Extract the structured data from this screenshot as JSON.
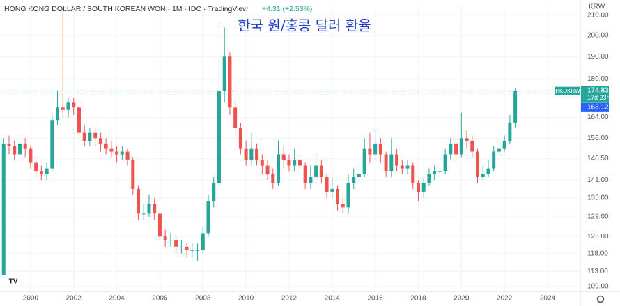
{
  "chart_data": {
    "type": "candlestick",
    "title": "HONG KONG DOLLAR / SOUTH KOREAN WON · 1M · IDC · TradingView",
    "change": "+4.31 (+2.53%)",
    "annotation": "한국 원/홍콩 달러 환율",
    "y_unit": "KRW",
    "symbol": "HKDKRW",
    "last_price": 174.83,
    "countdown": "17d 23h",
    "prev_price": 168.12,
    "up_color": "#26a69a",
    "down_color": "#ef5350",
    "prev_color": "#2962ff",
    "log_scale": true,
    "xlim": [
      1998.58,
      2025.52
    ],
    "xticks": [
      2000,
      2002,
      2004,
      2006,
      2008,
      2010,
      2012,
      2014,
      2016,
      2018,
      2020,
      2022,
      2024
    ],
    "ylim": [
      107.7,
      215
    ],
    "yticks": [
      {
        "value": 109,
        "label": "109.00"
      },
      {
        "value": 113,
        "label": "113.00"
      },
      {
        "value": 118,
        "label": "118.00"
      },
      {
        "value": 123,
        "label": "123.00"
      },
      {
        "value": 129,
        "label": "129.00"
      },
      {
        "value": 135,
        "label": "135.00"
      },
      {
        "value": 141,
        "label": "141.00"
      },
      {
        "value": 148.5,
        "label": "148.50"
      },
      {
        "value": 156,
        "label": "156.00"
      },
      {
        "value": 164,
        "label": "164.00"
      },
      {
        "value": 180,
        "label": "180.00"
      },
      {
        "value": 190,
        "label": "190.00"
      },
      {
        "value": 200,
        "label": "200.00"
      },
      {
        "value": 210,
        "label": "210.00"
      }
    ],
    "x": [
      1998.75,
      1999.0,
      1999.25,
      1999.5,
      1999.75,
      2000.0,
      2000.25,
      2000.5,
      2000.75,
      2001.0,
      2001.25,
      2001.5,
      2001.75,
      2002.0,
      2002.25,
      2002.5,
      2002.75,
      2003.0,
      2003.25,
      2003.5,
      2003.75,
      2004.0,
      2004.25,
      2004.5,
      2004.75,
      2005.0,
      2005.25,
      2005.5,
      2005.75,
      2006.0,
      2006.25,
      2006.5,
      2006.75,
      2007.0,
      2007.25,
      2007.5,
      2007.75,
      2008.0,
      2008.25,
      2008.5,
      2008.75,
      2009.0,
      2009.25,
      2009.5,
      2009.75,
      2010.0,
      2010.25,
      2010.5,
      2010.75,
      2011.0,
      2011.25,
      2011.5,
      2011.75,
      2012.0,
      2012.25,
      2012.5,
      2012.75,
      2013.0,
      2013.25,
      2013.5,
      2013.75,
      2014.0,
      2014.25,
      2014.5,
      2014.75,
      2015.0,
      2015.25,
      2015.5,
      2015.75,
      2016.0,
      2016.25,
      2016.5,
      2016.75,
      2017.0,
      2017.25,
      2017.5,
      2017.75,
      2018.0,
      2018.25,
      2018.5,
      2018.75,
      2019.0,
      2019.25,
      2019.5,
      2019.75,
      2020.0,
      2020.25,
      2020.5,
      2020.75,
      2021.0,
      2021.25,
      2021.5,
      2021.75,
      2022.0,
      2022.25,
      2022.5
    ],
    "open": [
      112,
      154,
      153,
      150,
      154,
      152,
      147,
      144,
      143,
      145,
      163,
      168,
      167,
      170,
      168,
      158,
      155,
      158,
      156,
      154,
      152,
      151,
      150,
      151,
      148,
      138,
      130,
      130,
      133,
      130,
      123,
      122,
      122,
      120,
      120,
      119,
      119,
      119,
      124,
      134,
      140,
      175,
      190,
      168,
      160,
      152,
      148,
      152,
      148,
      146,
      143,
      140,
      150,
      148,
      146,
      148,
      146,
      140,
      142,
      146,
      142,
      137,
      138,
      133,
      132,
      140,
      142,
      143,
      152,
      150,
      154,
      150,
      144,
      150,
      146,
      145,
      146,
      140,
      137,
      140,
      143,
      144,
      144,
      150,
      154,
      150,
      156,
      155,
      151,
      142,
      143,
      145,
      151,
      152,
      155,
      162
    ],
    "high": [
      156,
      157,
      155,
      157,
      156,
      153,
      149,
      146,
      147,
      165,
      175,
      215,
      172,
      172,
      169,
      161,
      160,
      160,
      158,
      156,
      155,
      153,
      153,
      152,
      149,
      139,
      133,
      136,
      135,
      131,
      125,
      124,
      123,
      122,
      121,
      121,
      121,
      126,
      136,
      142,
      205,
      204,
      192,
      170,
      162,
      155,
      158,
      154,
      150,
      148,
      145,
      155,
      153,
      150,
      152,
      150,
      147,
      146,
      150,
      148,
      143,
      142,
      139,
      135,
      143,
      145,
      146,
      156,
      158,
      159,
      156,
      151,
      156,
      152,
      148,
      148,
      147,
      141,
      142,
      145,
      146,
      146,
      152,
      156,
      155,
      166,
      159,
      157,
      152,
      146,
      148,
      153,
      155,
      157,
      165,
      176
    ],
    "low": [
      112,
      150,
      148,
      148,
      149,
      145,
      142,
      141,
      141,
      144,
      161,
      164,
      164,
      165,
      156,
      153,
      153,
      153,
      151,
      150,
      149,
      147,
      148,
      146,
      136,
      128,
      128,
      129,
      128,
      122,
      120,
      120,
      118,
      118,
      117,
      117,
      116,
      118,
      123,
      132,
      139,
      170,
      165,
      157,
      150,
      146,
      146,
      146,
      143,
      141,
      138,
      139,
      145,
      144,
      144,
      144,
      138,
      138,
      140,
      140,
      135,
      135,
      131,
      130,
      130,
      138,
      140,
      142,
      147,
      148,
      147,
      142,
      142,
      144,
      143,
      143,
      138,
      134,
      135,
      139,
      141,
      142,
      143,
      148,
      148,
      149,
      152,
      149,
      140,
      141,
      142,
      144,
      150,
      151,
      154,
      160
    ],
    "close": [
      154,
      153,
      150,
      154,
      152,
      147,
      144,
      143,
      145,
      163,
      168,
      167,
      170,
      168,
      158,
      155,
      158,
      156,
      154,
      152,
      151,
      150,
      151,
      148,
      138,
      130,
      130,
      133,
      130,
      123,
      122,
      122,
      120,
      120,
      119,
      119,
      119,
      124,
      134,
      140,
      175,
      190,
      168,
      160,
      152,
      148,
      152,
      148,
      146,
      143,
      140,
      150,
      148,
      146,
      148,
      146,
      140,
      142,
      146,
      142,
      137,
      138,
      133,
      132,
      140,
      142,
      143,
      152,
      150,
      154,
      150,
      144,
      150,
      146,
      145,
      146,
      140,
      137,
      140,
      143,
      144,
      144,
      150,
      154,
      150,
      156,
      155,
      151,
      142,
      143,
      145,
      151,
      152,
      155,
      162,
      174.83
    ]
  }
}
